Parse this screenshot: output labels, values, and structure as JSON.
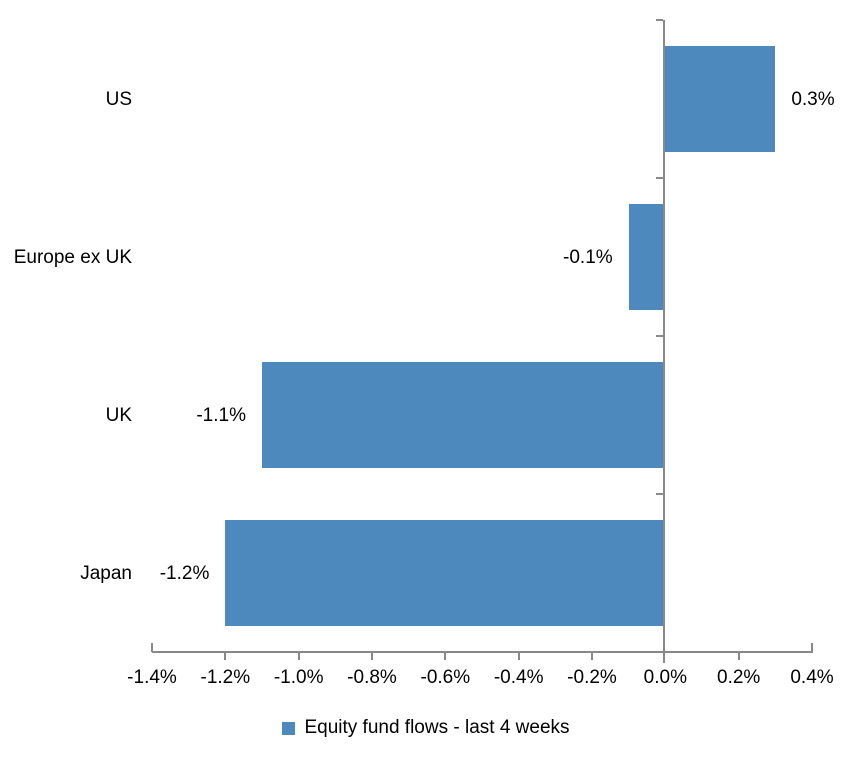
{
  "chart_data": {
    "type": "bar",
    "orientation": "horizontal",
    "title": "",
    "categories": [
      "US",
      "Europe ex UK",
      "UK",
      "Japan"
    ],
    "series": [
      {
        "name": "Equity fund flows - last 4 weeks",
        "values": [
          0.3,
          -0.1,
          -1.1,
          -1.2
        ],
        "value_labels": [
          "0.3%",
          "-0.1%",
          "-1.1%",
          "-1.2%"
        ],
        "color": "#4E89BE"
      }
    ],
    "xlabel": "",
    "ylabel": "",
    "xlim": [
      -1.4,
      0.4
    ],
    "x_ticks": [
      {
        "value": -1.4,
        "label": "-1.4%"
      },
      {
        "value": -1.2,
        "label": "-1.2%"
      },
      {
        "value": -1.0,
        "label": "-1.0%"
      },
      {
        "value": -0.8,
        "label": "-0.8%"
      },
      {
        "value": -0.6,
        "label": "-0.6%"
      },
      {
        "value": -0.4,
        "label": "-0.4%"
      },
      {
        "value": -0.2,
        "label": "-0.2%"
      },
      {
        "value": 0.0,
        "label": "0.0%"
      },
      {
        "value": 0.2,
        "label": "0.2%"
      },
      {
        "value": 0.4,
        "label": "0.4%"
      }
    ],
    "grid": false,
    "legend_position": "bottom",
    "axis_color": "#898989",
    "text_color": "#000000",
    "background_color": "#FFFFFF"
  },
  "legend": {
    "items": [
      {
        "label": "Equity fund flows - last 4 weeks",
        "swatch_color": "#4E89BE"
      }
    ]
  }
}
